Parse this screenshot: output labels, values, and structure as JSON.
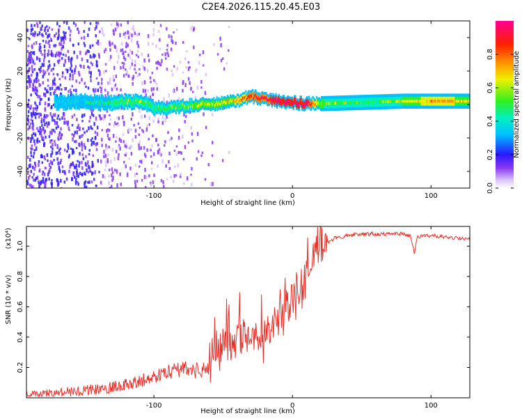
{
  "title": "C2E4.2026.115.20.45.E03",
  "chart_data": [
    {
      "type": "heatmap",
      "xlabel": "Height of straight line (km)",
      "ylabel": "Frequency (Hz)",
      "xlim": [
        -192,
        128
      ],
      "ylim": [
        -50,
        50
      ],
      "xticks": [
        -100,
        0,
        100
      ],
      "yticks": [
        -40,
        -20,
        0,
        20,
        40
      ],
      "colorbar": {
        "label": "Normalized spectral amplitude",
        "range": [
          0.0,
          1.0
        ],
        "ticks": [
          0.0,
          0.2,
          0.4,
          0.6,
          0.8
        ],
        "colormap": "rainbow"
      },
      "ridge": {
        "x": [
          -170,
          -150,
          -130,
          -110,
          -100,
          -90,
          -80,
          -70,
          -60,
          -50,
          -40,
          -35,
          -30,
          -20,
          -10,
          0,
          10,
          20,
          40,
          60,
          80,
          100,
          128
        ],
        "freq": [
          1,
          2,
          1,
          2,
          -2,
          -2,
          -1,
          0,
          0,
          1,
          2,
          4,
          5,
          3,
          2,
          1,
          0.5,
          0.5,
          1,
          1.5,
          2,
          2,
          2
        ],
        "amplitude": [
          0.3,
          0.35,
          0.45,
          0.5,
          0.45,
          0.45,
          0.5,
          0.55,
          0.55,
          0.6,
          0.65,
          0.75,
          0.8,
          0.85,
          0.9,
          0.92,
          0.9,
          0.55,
          0.45,
          0.45,
          0.55,
          0.7,
          0.6
        ]
      }
    },
    {
      "type": "line",
      "xlabel": "Height of straight line (km)",
      "ylabel": "SNR (10 * v/v)",
      "y_scale_note": "(x10⁴)",
      "xlim": [
        -192,
        128
      ],
      "ylim": [
        0.0,
        1.13
      ],
      "xticks": [
        -100,
        0,
        100
      ],
      "yticks": [
        0.2,
        0.4,
        0.6,
        0.8,
        1.0
      ],
      "color": "#e8302a",
      "series": [
        {
          "x": [
            -192,
            -180,
            -170,
            -160,
            -150,
            -140,
            -130,
            -120,
            -110,
            -100,
            -90,
            -80,
            -70,
            -60,
            -55,
            -50,
            -45,
            -40,
            -35,
            -30,
            -25,
            -20,
            -15,
            -10,
            -5,
            0,
            5,
            10,
            15,
            20,
            25,
            30,
            40,
            50,
            60,
            70,
            80,
            85,
            88,
            90,
            100,
            110,
            120,
            128
          ],
          "y": [
            0.02,
            0.02,
            0.03,
            0.04,
            0.05,
            0.06,
            0.07,
            0.09,
            0.11,
            0.14,
            0.17,
            0.19,
            0.18,
            0.2,
            0.3,
            0.3,
            0.28,
            0.32,
            0.38,
            0.4,
            0.36,
            0.36,
            0.4,
            0.48,
            0.55,
            0.6,
            0.65,
            0.75,
            0.85,
            0.95,
            1.02,
            1.05,
            1.07,
            1.08,
            1.08,
            1.08,
            1.08,
            1.07,
            0.95,
            1.06,
            1.07,
            1.06,
            1.05,
            1.05
          ]
        }
      ]
    }
  ]
}
